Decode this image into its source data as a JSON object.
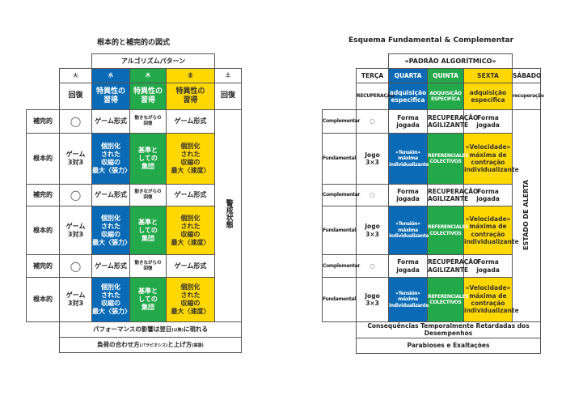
{
  "colors": {
    "blue": "#0a6ab5",
    "green": "#23a94a",
    "yellow": "#ffd800"
  },
  "tables": [
    {
      "title": "根本的と補完的の図式",
      "header": "アルゴリズムパターン",
      "days": [
        "火",
        "水",
        "木",
        "金",
        "土"
      ],
      "recovery_row": [
        "回復",
        "特異性の\n習得",
        "特異性の\n習得",
        "特異性の\n習得",
        "回復"
      ],
      "side_label": "警戒状態",
      "rows": [
        {
          "label": "補完的",
          "cells": [
            "○",
            "ゲーム形式",
            "動きながらの\n回復",
            "ゲーム形式"
          ]
        },
        {
          "label": "根本的",
          "cells": [
            "ゲーム\n3対3",
            "個別化\nされた\n収縮の\n最大〈張力〉",
            "基準と\nしての\n集団",
            "個別化\nされた\n収縮の\n最大〈速度〉"
          ]
        },
        {
          "label": "補完的",
          "cells": [
            "○",
            "ゲーム形式",
            "動きながらの\n回復",
            "ゲーム形式"
          ]
        },
        {
          "label": "根本的",
          "cells": [
            "ゲーム\n3対3",
            "個別化\nされた\n収縮の\n最大〈張力〉",
            "基準と\nしての\n集団",
            "個別化\nされた\n収縮の\n最大〈速度〉"
          ]
        },
        {
          "label": "補完的",
          "cells": [
            "○",
            "ゲーム形式",
            "動きながらの\n回復",
            "ゲーム形式"
          ]
        },
        {
          "label": "根本的",
          "cells": [
            "ゲーム\n3対3",
            "個別化\nされた\n収縮の\n最大〈張力〉",
            "基準と\nしての\n集団",
            "個別化\nされた\n収縮の\n最大〈速度〉"
          ]
        }
      ],
      "footer": [
        [
          "パフォーマンスの影響は翌日",
          "(以降)",
          "に現れる"
        ],
        [
          "負荷の合わせ方",
          "(パラビオシス)",
          "と上げ方",
          "(高揚)"
        ]
      ]
    },
    {
      "title": "Esquema Fundamental & Complementar",
      "header": "«PADRÃO ALGORÍTMICO»",
      "days": [
        "TERÇA",
        "QUARTA",
        "QUINTA",
        "SEXTA",
        "SÁBADO"
      ],
      "recovery_row": [
        "RECUPERAÇÃO",
        "adquisição\nespecifica",
        "ADQUISIÇÃO\nESPECIFICA",
        "adquisição\nespecifica",
        "recuperação"
      ],
      "side_label": "ESTADO DE ALERTA",
      "rows": [
        {
          "label": "Complementar",
          "cells": [
            "○",
            "Forma\njogada",
            "RECUPERAÇÃO\nAGILIZANTE",
            "Forma\njogada"
          ]
        },
        {
          "label": "Fundamental",
          "cells": [
            "Jogo\n3×3",
            "«Tensión»\nmáxima\nindividualizante",
            "REFERENCIALES\nCOLECTIVOS",
            "«Velocidade»\nmáxima de\ncontração\nindividualizante"
          ]
        },
        {
          "label": "Complementar",
          "cells": [
            "○",
            "Forma\njogada",
            "RECUPERAÇÃO\nAGILIZANTE",
            "Forma\njogada"
          ]
        },
        {
          "label": "Fundamental",
          "cells": [
            "Jogo\n3×3",
            "«Tensión»\nmáxima\nindividualizante",
            "REFERENCIALES\nCOLECTIVOS",
            "«Velocidade»\nmáxima de\ncontração\nindividualizante"
          ]
        },
        {
          "label": "Complementar",
          "cells": [
            "○",
            "Forma\njogada",
            "RECUPERAÇÃO\nAGILIZANTE",
            "Forma\njogada"
          ]
        },
        {
          "label": "Fundamental",
          "cells": [
            "Jogo\n3×3",
            "«Tensión»\nmáxima\nindividualizante",
            "REFERENCIALES\nCOLECTIVOS",
            "«Velocidade»\nmáxima de\ncontração\nindividualizante"
          ]
        }
      ],
      "footer": [
        [
          "Consequências Temporalmente Retardadas dos Desempenhos"
        ],
        [
          "Parabioses e Exaltações"
        ]
      ]
    }
  ]
}
